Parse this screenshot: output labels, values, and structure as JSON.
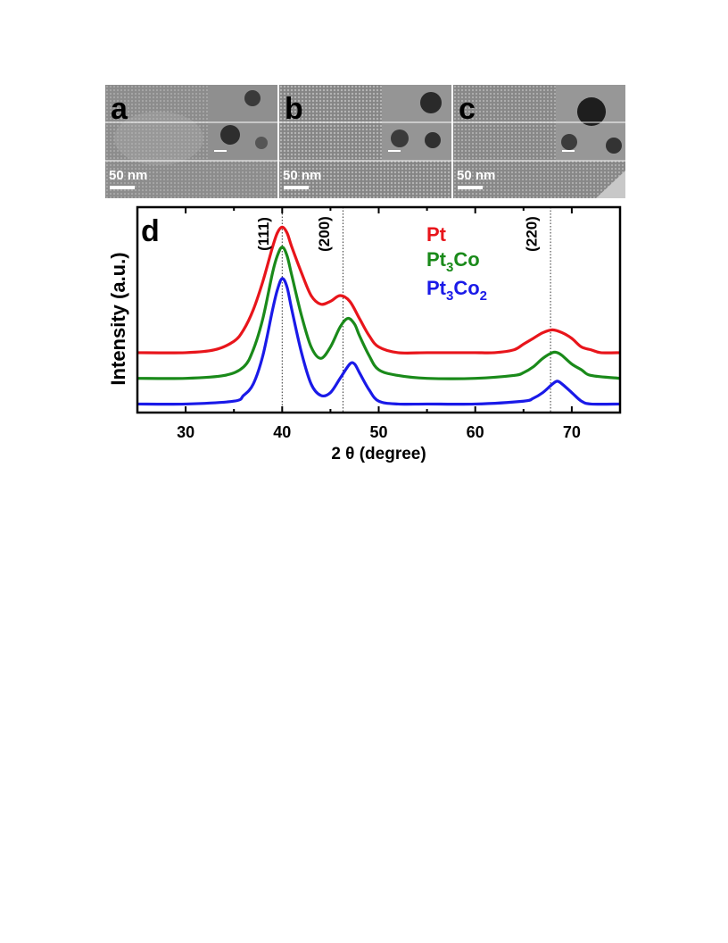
{
  "panels": [
    {
      "letter": "a",
      "scale_label": "50 nm"
    },
    {
      "letter": "b",
      "scale_label": "50 nm"
    },
    {
      "letter": "c",
      "scale_label": "50 nm"
    }
  ],
  "chart_letter": "d",
  "chart_data": {
    "type": "line",
    "xlabel": "2 θ (degree)",
    "ylabel": "Intensity (a.u.)",
    "xlim": [
      25,
      75
    ],
    "xticks": [
      30,
      40,
      50,
      60,
      70
    ],
    "reference_lines": [
      {
        "x": 40.0,
        "label": "(111)"
      },
      {
        "x": 46.3,
        "label": "(200)"
      },
      {
        "x": 67.8,
        "label": "(220)"
      }
    ],
    "series": [
      {
        "name": "Pt",
        "color": "#e8151b",
        "x": [
          25,
          30,
          33,
          35,
          36,
          37,
          38,
          39,
          39.5,
          40,
          40.5,
          41,
          42,
          43,
          44,
          45,
          46,
          47,
          48,
          49,
          50,
          52,
          55,
          58,
          60,
          62,
          64,
          65,
          66,
          67,
          68,
          69,
          70,
          71,
          72,
          73,
          75
        ],
        "y": [
          0.09,
          0.09,
          0.1,
          0.13,
          0.17,
          0.24,
          0.34,
          0.46,
          0.51,
          0.53,
          0.51,
          0.46,
          0.37,
          0.29,
          0.26,
          0.27,
          0.29,
          0.27,
          0.21,
          0.15,
          0.11,
          0.09,
          0.09,
          0.09,
          0.09,
          0.09,
          0.1,
          0.12,
          0.14,
          0.16,
          0.17,
          0.16,
          0.14,
          0.11,
          0.1,
          0.09,
          0.09
        ]
      },
      {
        "name": "Pt3Co",
        "color": "#1a8a1a",
        "x": [
          25,
          30,
          34,
          36,
          37,
          38,
          39,
          39.5,
          40,
          40.5,
          41,
          42,
          43,
          44,
          45,
          46,
          46.8,
          47.5,
          48,
          49,
          50,
          52,
          55,
          60,
          64,
          65,
          66,
          67,
          68,
          68.5,
          69,
          70,
          71,
          72,
          75
        ],
        "y": [
          0.0,
          0.0,
          0.01,
          0.04,
          0.1,
          0.21,
          0.37,
          0.43,
          0.46,
          0.43,
          0.36,
          0.22,
          0.11,
          0.07,
          0.11,
          0.18,
          0.21,
          0.19,
          0.15,
          0.08,
          0.03,
          0.01,
          0.0,
          0.0,
          0.01,
          0.02,
          0.04,
          0.07,
          0.09,
          0.09,
          0.08,
          0.05,
          0.03,
          0.01,
          0.0
        ]
      },
      {
        "name": "Pt3Co2",
        "color": "#1a1ae8",
        "x": [
          25,
          30,
          35,
          36,
          37,
          38,
          39,
          39.5,
          40,
          40.5,
          41,
          42,
          43,
          44,
          45,
          46,
          47,
          47.5,
          48,
          49,
          50,
          52,
          55,
          60,
          65,
          66,
          67,
          68,
          68.5,
          69,
          70,
          71,
          72,
          75
        ],
        "y": [
          -0.09,
          -0.09,
          -0.08,
          -0.06,
          -0.02,
          0.08,
          0.24,
          0.31,
          0.35,
          0.32,
          0.24,
          0.09,
          -0.02,
          -0.06,
          -0.05,
          0.0,
          0.05,
          0.05,
          0.02,
          -0.04,
          -0.08,
          -0.09,
          -0.09,
          -0.09,
          -0.08,
          -0.07,
          -0.05,
          -0.02,
          -0.01,
          -0.02,
          -0.05,
          -0.08,
          -0.09,
          -0.09
        ]
      }
    ],
    "legend": {
      "placement": "top-right",
      "entries": [
        {
          "text": "Pt",
          "sub": "",
          "text2": "",
          "sub2": "",
          "color": "#e8151b"
        },
        {
          "text": "Pt",
          "sub": "3",
          "text2": "Co",
          "sub2": "",
          "color": "#1a8a1a"
        },
        {
          "text": "Pt",
          "sub": "3",
          "text2": "Co",
          "sub2": "2",
          "color": "#1a1ae8"
        }
      ]
    }
  }
}
